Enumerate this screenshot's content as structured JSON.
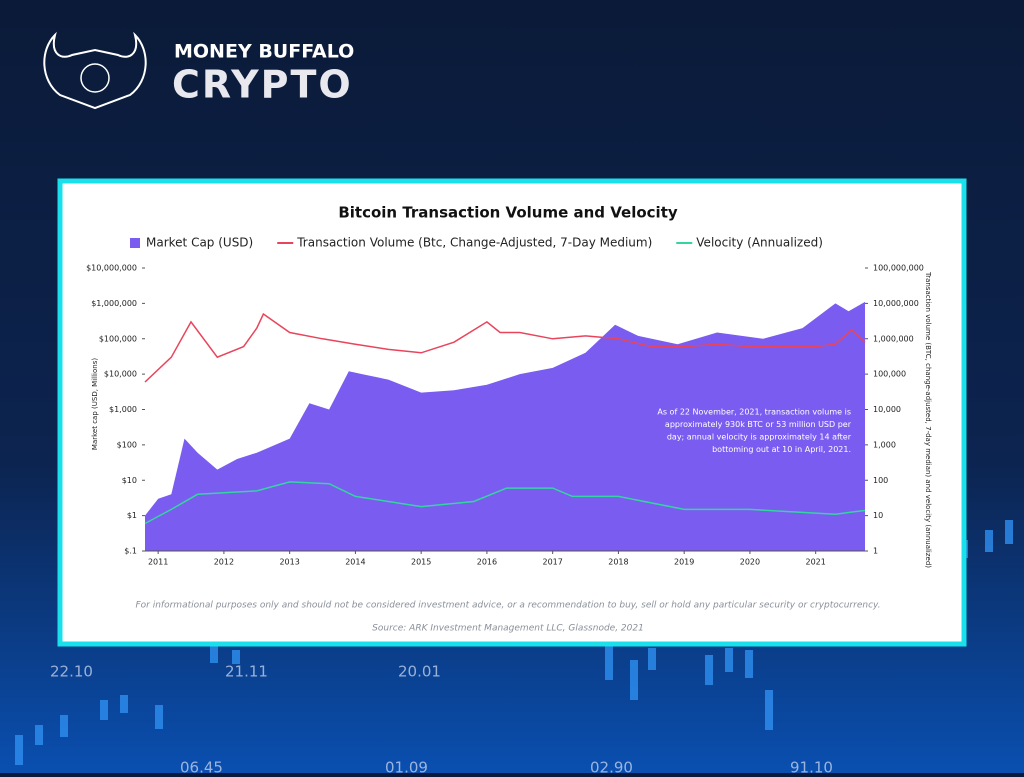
{
  "brand": {
    "name": "MONEY BUFFALO",
    "product": "CRYPTO"
  },
  "background_labels": [
    "22.10",
    "21.11",
    "20.01",
    "06.45",
    "01.09",
    "02.90",
    "91.10"
  ],
  "chart_data": {
    "type": "log-area-line",
    "title": "Bitcoin Transaction Volume and Velocity",
    "y_label": "Market cap (USD, Millions)",
    "y2_label": "Transaction volume (BTC, change-adjusted, 7-day median) and velocity (annualized)",
    "log_scale": true,
    "grid": false,
    "legend": "top",
    "xlim": [
      2010.8,
      2021.75
    ],
    "xticks": [
      2011,
      2012,
      2013,
      2014,
      2015,
      2016,
      2017,
      2018,
      2019,
      2020,
      2021
    ],
    "ylim": [
      0.1,
      10000000
    ],
    "yticks": [
      {
        "value": 0.1,
        "label": "$.1"
      },
      {
        "value": 1,
        "label": "$1"
      },
      {
        "value": 10,
        "label": "$10"
      },
      {
        "value": 100,
        "label": "$100"
      },
      {
        "value": 1000,
        "label": "$1,000"
      },
      {
        "value": 10000,
        "label": "$10,000"
      },
      {
        "value": 100000,
        "label": "$100,000"
      },
      {
        "value": 1000000,
        "label": "$1,000,000"
      },
      {
        "value": 10000000,
        "label": "$10,000,000"
      }
    ],
    "y2lim": [
      1,
      100000000
    ],
    "y2ticks": [
      1,
      10,
      100,
      {
        "value": 1000,
        "label": "1,000"
      },
      {
        "value": 10000,
        "label": "10,000"
      },
      {
        "value": 100000,
        "label": "100,000"
      },
      {
        "value": 1000000,
        "label": "1,000,000"
      },
      {
        "value": 10000000,
        "label": "10,000,000"
      },
      {
        "value": 100000000,
        "label": "100,000,000"
      }
    ],
    "series": [
      {
        "name": "Market Cap (USD)",
        "color": "#7a5cf0",
        "kind": "area",
        "x": [
          2010.8,
          2011.0,
          2011.2,
          2011.4,
          2011.6,
          2011.9,
          2012.2,
          2012.5,
          2013.0,
          2013.3,
          2013.6,
          2013.9,
          2014.1,
          2014.5,
          2015.0,
          2015.5,
          2016.0,
          2016.5,
          2017.0,
          2017.5,
          2017.95,
          2018.3,
          2018.9,
          2019.5,
          2020.2,
          2020.8,
          2021.3,
          2021.5,
          2021.75
        ],
        "values": [
          1,
          3,
          4,
          150,
          60,
          20,
          40,
          60,
          150,
          1500,
          1000,
          12000,
          10000,
          7000,
          3000,
          3500,
          5000,
          10000,
          15000,
          40000,
          250000,
          120000,
          70000,
          150000,
          100000,
          200000,
          1000000,
          600000,
          1100000
        ]
      },
      {
        "name": "Transaction Volume (Btc, Change-Adjusted, 7-Day Medium)",
        "color": "#e8455c",
        "kind": "line",
        "axis": "y2",
        "x": [
          2010.8,
          2011.2,
          2011.5,
          2011.9,
          2012.3,
          2012.5,
          2012.6,
          2013.0,
          2013.5,
          2014.0,
          2014.5,
          2015.0,
          2015.5,
          2016.0,
          2016.2,
          2016.5,
          2017.0,
          2017.5,
          2018.0,
          2018.5,
          2019.0,
          2019.5,
          2020.0,
          2020.5,
          2021.0,
          2021.3,
          2021.55,
          2021.75
        ],
        "values": [
          60000,
          300000,
          3000000,
          300000,
          600000,
          2000000,
          5000000,
          1500000,
          1000000,
          700000,
          500000,
          400000,
          800000,
          3000000,
          1500000,
          1500000,
          1000000,
          1200000,
          1000000,
          600000,
          600000,
          700000,
          600000,
          600000,
          600000,
          700000,
          1800000,
          800000
        ]
      },
      {
        "name": "Velocity (Annualized)",
        "color": "#33d6a0",
        "kind": "line",
        "axis": "y2",
        "x": [
          2010.8,
          2011.2,
          2011.6,
          2012.5,
          2013.0,
          2013.6,
          2014.0,
          2014.5,
          2015.0,
          2015.8,
          2016.3,
          2017.0,
          2017.3,
          2018.0,
          2019.0,
          2020.0,
          2021.3,
          2021.6,
          2021.75
        ],
        "values": [
          6,
          15,
          40,
          50,
          90,
          80,
          35,
          25,
          18,
          25,
          60,
          60,
          35,
          35,
          15,
          15,
          11,
          13,
          14
        ]
      }
    ],
    "annotation": [
      "As of 22 November, 2021, transaction volume is",
      "approximately 930k BTC or 53 million USD per",
      "day; annual velocity is approximately 14 after",
      "bottoming out at 10 in April, 2021."
    ],
    "footnote": "For informational purposes only and should not be considered investment advice, or a recommendation to buy, sell or hold any particular security or cryptocurrency.",
    "source": "Source: ARK Investment Management LLC, Glassnode, 2021"
  }
}
